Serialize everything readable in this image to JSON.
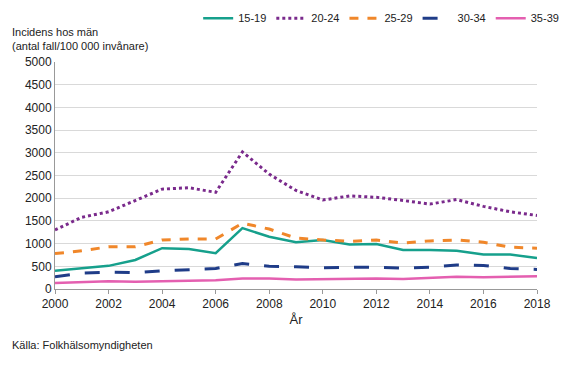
{
  "chart_data": {
    "type": "line",
    "ylabel": "Incidens hos män\n(antal fall/100 000 invånare)",
    "xlabel": "År",
    "annotations": [
      "Källa: Folkhälsomyndigheten"
    ],
    "x": [
      2000,
      2001,
      2002,
      2003,
      2004,
      2005,
      2006,
      2007,
      2008,
      2009,
      2010,
      2011,
      2012,
      2013,
      2014,
      2015,
      2016,
      2017,
      2018
    ],
    "series": [
      {
        "name": "15-19",
        "color": "#16a08c",
        "line_style": "solid",
        "values": [
          400,
          450,
          510,
          640,
          900,
          880,
          790,
          1340,
          1150,
          1030,
          1080,
          980,
          990,
          860,
          860,
          840,
          760,
          760,
          680
        ]
      },
      {
        "name": "20-24",
        "color": "#7a2a8c",
        "line_style": "dot",
        "values": [
          1300,
          1580,
          1700,
          1950,
          2200,
          2230,
          2130,
          3020,
          2530,
          2170,
          1960,
          2050,
          2020,
          1950,
          1870,
          1970,
          1820,
          1700,
          1620
        ]
      },
      {
        "name": "25-29",
        "color": "#f0872a",
        "line_style": "dash",
        "values": [
          780,
          840,
          930,
          930,
          1080,
          1100,
          1100,
          1450,
          1320,
          1120,
          1080,
          1050,
          1080,
          1010,
          1060,
          1080,
          1030,
          920,
          900
        ]
      },
      {
        "name": "30-34",
        "color": "#1f3c88",
        "line_style": "longdash",
        "values": [
          270,
          350,
          370,
          360,
          400,
          420,
          450,
          560,
          500,
          490,
          470,
          480,
          480,
          460,
          480,
          530,
          520,
          450,
          430
        ]
      },
      {
        "name": "35-39",
        "color": "#e45fb0",
        "line_style": "solid",
        "values": [
          130,
          150,
          170,
          160,
          170,
          190,
          190,
          230,
          230,
          210,
          220,
          230,
          230,
          220,
          250,
          270,
          260,
          270,
          280
        ]
      }
    ],
    "xlim": [
      2000,
      2018
    ],
    "xticks": [
      2000,
      2002,
      2004,
      2006,
      2008,
      2010,
      2012,
      2014,
      2016,
      2018
    ],
    "ylim": [
      0,
      5000
    ],
    "yticks": [
      0,
      500,
      1000,
      1500,
      2000,
      2500,
      3000,
      3500,
      4000,
      4500,
      5000
    ],
    "grid": true,
    "legend": "top"
  }
}
